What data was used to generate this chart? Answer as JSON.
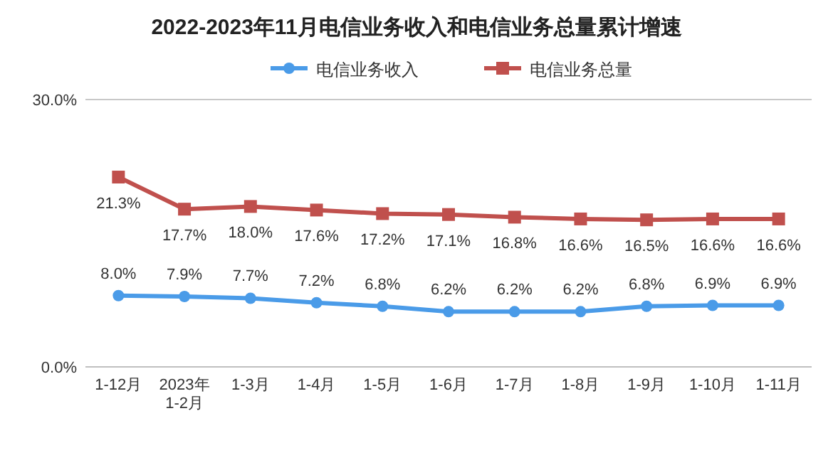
{
  "chart_data": {
    "type": "line",
    "title": "2022-2023年11月电信业务收入和电信业务总量累计增速",
    "categories": [
      "1-12月",
      "2023年\n1-2月",
      "1-3月",
      "1-4月",
      "1-5月",
      "1-6月",
      "1-7月",
      "1-8月",
      "1-9月",
      "1-10月",
      "1-11月"
    ],
    "series": [
      {
        "name": "电信业务收入",
        "color": "#4a9be8",
        "marker": "circle",
        "values": [
          8.0,
          7.9,
          7.7,
          7.2,
          6.8,
          6.2,
          6.2,
          6.2,
          6.8,
          6.9,
          6.9
        ],
        "value_labels": [
          "8.0%",
          "7.9%",
          "7.7%",
          "7.2%",
          "6.8%",
          "6.2%",
          "6.2%",
          "6.2%",
          "6.8%",
          "6.9%",
          "6.9%"
        ]
      },
      {
        "name": "电信业务总量",
        "color": "#c0504d",
        "marker": "square",
        "values": [
          21.3,
          17.7,
          18.0,
          17.6,
          17.2,
          17.1,
          16.8,
          16.6,
          16.5,
          16.6,
          16.6
        ],
        "value_labels": [
          "21.3%",
          "17.7%",
          "18.0%",
          "17.6%",
          "17.2%",
          "17.1%",
          "16.8%",
          "16.6%",
          "16.5%",
          "16.6%",
          "16.6%"
        ]
      }
    ],
    "ylim": [
      0,
      30
    ],
    "yticks": [
      {
        "value": 0,
        "label": "0.0%"
      },
      {
        "value": 30,
        "label": "30.0%"
      }
    ],
    "legend": "top",
    "line_style": "solid"
  }
}
